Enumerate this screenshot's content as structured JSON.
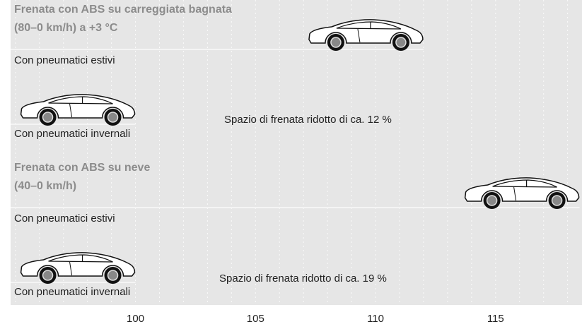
{
  "chart_data": {
    "type": "bar",
    "orientation": "horizontal",
    "groups": [
      {
        "title": [
          "Frenata con ABS su carreggiata bagnata",
          "(80–0 km/h) a +3 °C"
        ],
        "bars": [
          {
            "label": "Con pneumatici estivi",
            "value": 112
          },
          {
            "label": "Con pneumatici invernali",
            "value": 100
          }
        ],
        "annotation": "Spazio di frenata ridotto di ca. 12 %"
      },
      {
        "title": [
          "Frenata con ABS su neve",
          "(40–0 km/h)"
        ],
        "bars": [
          {
            "label": "Con pneumatici estivi",
            "value": 118.5
          },
          {
            "label": "Con pneumatici invernali",
            "value": 100
          }
        ],
        "annotation": "Spazio di frenata ridotto di ca. 19 %"
      }
    ],
    "xlim": [
      94.8,
      118.6
    ],
    "xticks": [
      100,
      105,
      110,
      115
    ],
    "xminor": [
      95,
      96,
      97,
      98,
      99,
      100,
      101,
      102,
      103,
      104,
      105,
      106,
      107,
      108,
      109,
      110,
      111,
      112,
      113,
      114,
      115,
      116,
      117,
      118
    ],
    "grid": true
  }
}
